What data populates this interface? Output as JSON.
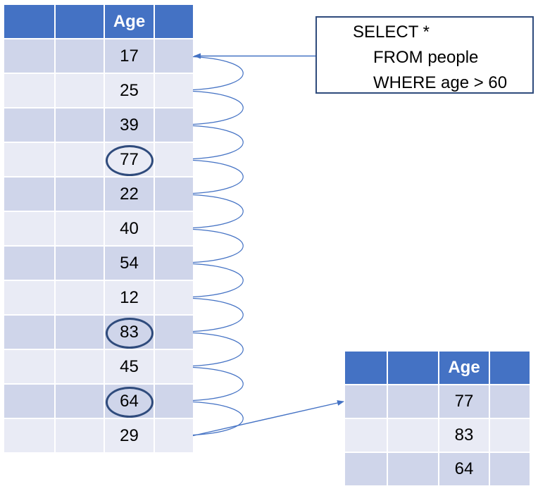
{
  "source_table": {
    "headers": [
      "",
      "",
      "Age",
      ""
    ],
    "rows": [
      {
        "age": "17",
        "match": false
      },
      {
        "age": "25",
        "match": false
      },
      {
        "age": "39",
        "match": false
      },
      {
        "age": "77",
        "match": true
      },
      {
        "age": "22",
        "match": false
      },
      {
        "age": "40",
        "match": false
      },
      {
        "age": "54",
        "match": false
      },
      {
        "age": "12",
        "match": false
      },
      {
        "age": "83",
        "match": true
      },
      {
        "age": "45",
        "match": false
      },
      {
        "age": "64",
        "match": true
      },
      {
        "age": "29",
        "match": false
      }
    ]
  },
  "query": {
    "lines": [
      "SELECT *",
      "FROM people",
      "WHERE age > 60"
    ]
  },
  "result_table": {
    "headers": [
      "",
      "",
      "Age",
      ""
    ],
    "rows": [
      {
        "age": "77"
      },
      {
        "age": "83"
      },
      {
        "age": "64"
      }
    ]
  },
  "colors": {
    "header": "#4472c4",
    "row_dark": "#cfd5ea",
    "row_light": "#e9ebf5",
    "ring": "#2f4b7c",
    "arrow": "#4472c4",
    "box_border": "#2f4b7c"
  }
}
